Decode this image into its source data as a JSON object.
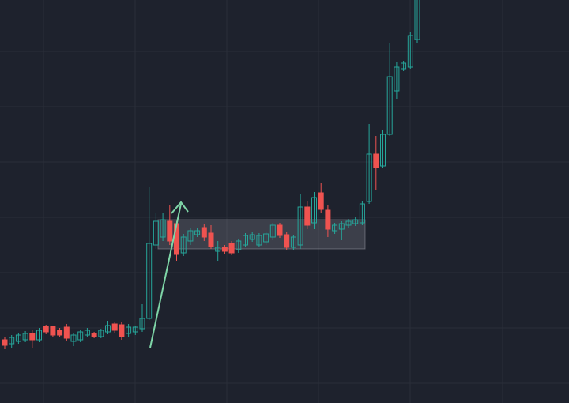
{
  "chart_data": {
    "type": "candlestick",
    "categories": [
      null,
      null,
      null,
      null,
      null,
      null,
      null,
      null,
      null,
      null,
      null,
      null,
      null,
      null,
      null,
      null,
      null,
      null,
      null,
      null,
      null,
      null,
      null,
      null,
      null,
      null,
      null,
      null,
      null,
      null,
      null,
      null,
      null,
      null,
      null,
      null,
      null,
      null,
      null,
      null,
      null,
      null,
      null,
      null,
      null,
      null,
      null,
      null,
      null,
      null,
      null,
      null,
      null,
      null,
      null,
      null,
      null,
      null,
      null,
      null,
      null
    ],
    "open": [
      80,
      75,
      78,
      80,
      88,
      80,
      97,
      97,
      92,
      96,
      78,
      80,
      86,
      88,
      84,
      90,
      100,
      99,
      88,
      90,
      94,
      107,
      200,
      210,
      230,
      227,
      190,
      205,
      213,
      222,
      215,
      192,
      197,
      202,
      194,
      200,
      207,
      200,
      204,
      210,
      225,
      213,
      197,
      200,
      248,
      228,
      266,
      244,
      218,
      220,
      225,
      227,
      228,
      255,
      315,
      300,
      340,
      395,
      423,
      425,
      460
    ],
    "high": [
      84,
      86,
      89,
      91,
      92,
      95,
      99,
      98,
      95,
      100,
      88,
      92,
      95,
      90,
      94,
      104,
      103,
      102,
      100,
      98,
      125,
      273,
      240,
      240,
      250,
      230,
      214,
      222,
      222,
      227,
      225,
      205,
      200,
      205,
      208,
      215,
      216,
      215,
      217,
      228,
      228,
      216,
      213,
      265,
      255,
      267,
      278,
      250,
      228,
      230,
      233,
      235,
      256,
      353,
      338,
      345,
      455,
      432,
      433,
      470,
      540
    ],
    "low": [
      68,
      70,
      75,
      77,
      70,
      77,
      87,
      84,
      83,
      78,
      72,
      77,
      83,
      82,
      82,
      87,
      88,
      80,
      84,
      86,
      90,
      105,
      195,
      205,
      200,
      180,
      186,
      200,
      210,
      205,
      195,
      180,
      189,
      187,
      190,
      197,
      204,
      197,
      200,
      206,
      209,
      194,
      194,
      195,
      220,
      220,
      240,
      210,
      214,
      206,
      222,
      224,
      225,
      252,
      270,
      298,
      338,
      385,
      420,
      423,
      455
    ],
    "close": [
      73,
      83,
      86,
      88,
      80,
      92,
      90,
      86,
      86,
      82,
      86,
      90,
      92,
      84,
      92,
      98,
      92,
      84,
      96,
      96,
      107,
      202,
      230,
      232,
      205,
      188,
      210,
      218,
      218,
      210,
      198,
      197,
      192,
      190,
      205,
      212,
      213,
      212,
      214,
      225,
      212,
      197,
      210,
      248,
      225,
      260,
      245,
      220,
      225,
      227,
      230,
      232,
      252,
      315,
      298,
      340,
      413,
      425,
      430,
      465,
      530
    ],
    "up_color": "#26a69a",
    "down_color": "#ef5350",
    "ylim": [
      0,
      510
    ],
    "grid": true
  }
}
